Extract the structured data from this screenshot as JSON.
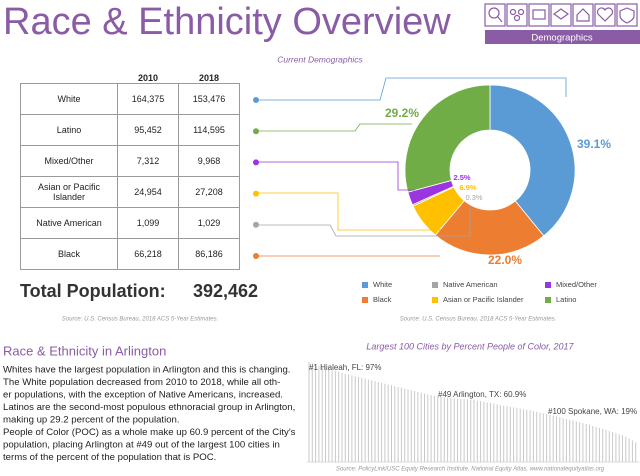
{
  "header": {
    "title": "Race & Ethnicity Overview",
    "nav_active": "Demographics"
  },
  "table": {
    "columns": [
      "2010",
      "2018"
    ],
    "rows": [
      [
        "White",
        "164,375",
        "153,476"
      ],
      [
        "Latino",
        "95,452",
        "114,595"
      ],
      [
        "Mixed/Other",
        "7,312",
        "9,968"
      ],
      [
        "Asian or Pacific Islander",
        "24,954",
        "27,208"
      ],
      [
        "Native American",
        "1,099",
        "1,029"
      ],
      [
        "Black",
        "66,218",
        "86,186"
      ]
    ]
  },
  "total": {
    "label": "Total Population:",
    "value": "392,462"
  },
  "table_source": "Source: U.S. Census Bureau, 2018 ACS 5-Year Estimates.",
  "section": {
    "title": "Race & Ethnicity in Arlington",
    "lines": [
      "Whites have the largest population in Arlington and this is changing.",
      "The White population decreased from 2010 to 2018, while all oth-",
      "er populations, with the exception of Native Americans, increased.",
      "Latinos are the second-most populous ethnoracial group in Arlington,",
      "making up 29.2 percent of the population.",
      "People of Color (POC) as a whole make up 60.9 percent of the City's",
      "population, placing Arlington at #49 out of the largest 100 cities in",
      "terms of the percent of the population that is POC."
    ]
  },
  "chart_data": [
    {
      "type": "pie",
      "title": "Current Demographics",
      "categories": [
        "White",
        "Black",
        "Asian or Pacific Islander",
        "Native American",
        "Mixed/Other",
        "Latino"
      ],
      "values": [
        39.1,
        22.0,
        6.9,
        0.3,
        2.5,
        29.2
      ],
      "value_labels": [
        "39.1%",
        "22.0%",
        "6.9%",
        "0.3%",
        "2.5%",
        "29.2%"
      ],
      "colors": [
        "#5b9bd5",
        "#ed7d31",
        "#ffc000",
        "#a5a5a5",
        "#9b35e0",
        "#70ad47"
      ],
      "source": "Source: U.S. Census Bureau, 2018 ACS 5-Year Estimates."
    },
    {
      "type": "bar",
      "title": "Largest 100 Cities by Percent People of Color, 2017",
      "values": [
        97,
        95.5,
        94,
        92.8,
        91.5,
        90.5,
        89.6,
        88.8,
        88,
        87.2,
        86.4,
        85.6,
        84.8,
        84,
        83.2,
        82.4,
        81.6,
        80.8,
        80,
        79.2,
        78.4,
        77.6,
        76.8,
        76,
        75.2,
        74.4,
        73.6,
        72.8,
        72,
        71.2,
        70.4,
        69.6,
        68.8,
        68,
        67.2,
        66.4,
        65.6,
        64.9,
        64.3,
        63.7,
        63.2,
        62.8,
        62.4,
        62,
        61.7,
        61.4,
        61.2,
        61.0,
        60.9,
        60.5,
        60,
        59.5,
        59,
        58.4,
        57.8,
        57.2,
        56.6,
        56,
        55.4,
        54.8,
        54.2,
        53.6,
        53,
        52.4,
        51.8,
        51.2,
        50.6,
        50,
        49.3,
        48.6,
        47.9,
        47.2,
        46.5,
        45.8,
        45,
        44.2,
        43.4,
        42.6,
        41.8,
        41,
        40.2,
        39.4,
        38.6,
        37.8,
        37,
        36,
        35,
        34,
        33,
        32,
        31,
        30,
        29,
        28,
        27,
        26,
        24.5,
        23,
        21,
        19
      ],
      "color": "#c9c9c9",
      "annotations": [
        "#1 Hialeah, FL: 97%",
        "#49 Arlington, TX: 60.9%",
        "#100 Spokane, WA: 19%"
      ],
      "source": "Source: PolicyLink/USC Equity Research Institute, National Equity Atlas, www.nationalequityatlas.org"
    }
  ]
}
